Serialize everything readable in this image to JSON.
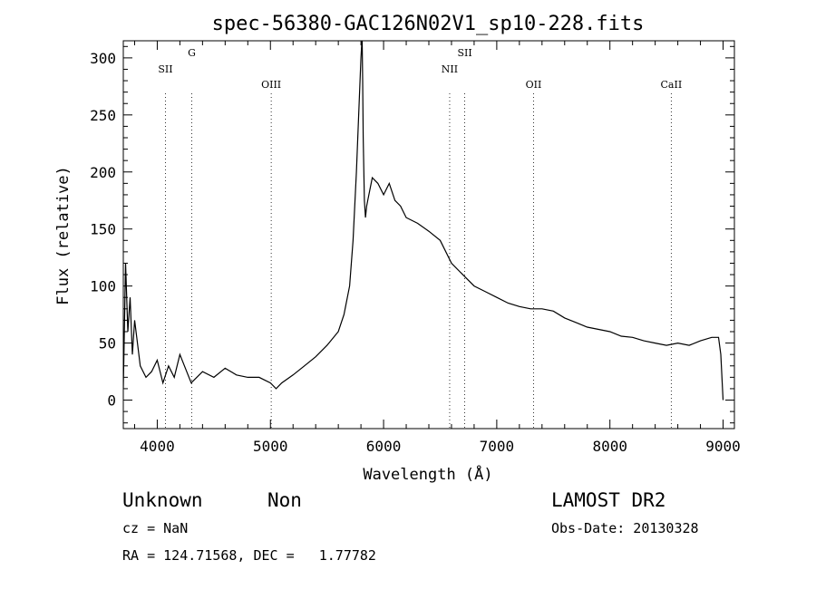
{
  "chart_data": {
    "type": "line",
    "title": "spec-56380-GAC126N02V1_sp10-228.fits",
    "xlabel": "Wavelength (Å)",
    "ylabel": "Flux (relative)",
    "xlim": [
      3700,
      9100
    ],
    "ylim": [
      -25,
      315
    ],
    "x_ticks": [
      4000,
      5000,
      6000,
      7000,
      8000,
      9000
    ],
    "y_ticks": [
      0,
      50,
      100,
      150,
      200,
      250,
      300
    ],
    "grid": false,
    "legend": "none",
    "line_color": "#000000",
    "series": [
      {
        "x": [
          3700,
          3720,
          3740,
          3760,
          3780,
          3800,
          3850,
          3900,
          3950,
          4000,
          4050,
          4100,
          4150,
          4200,
          4300,
          4400,
          4500,
          4600,
          4700,
          4800,
          4900,
          5000,
          5050,
          5100,
          5200,
          5300,
          5400,
          5500,
          5600,
          5650,
          5700,
          5730,
          5760,
          5780,
          5800,
          5810,
          5815,
          5820,
          5830,
          5840,
          5850,
          5860,
          5880,
          5900,
          5950,
          6000,
          6050,
          6100,
          6150,
          6200,
          6300,
          6400,
          6500,
          6600,
          6700,
          6800,
          6900,
          7000,
          7100,
          7200,
          7300,
          7400,
          7500,
          7600,
          7700,
          7800,
          7900,
          8000,
          8100,
          8200,
          8300,
          8400,
          8500,
          8600,
          8700,
          8800,
          8900,
          8960,
          8980,
          9000
        ],
        "y": [
          10,
          120,
          60,
          90,
          40,
          70,
          30,
          20,
          25,
          35,
          15,
          30,
          20,
          40,
          15,
          25,
          20,
          28,
          22,
          20,
          20,
          15,
          10,
          15,
          22,
          30,
          38,
          48,
          60,
          75,
          100,
          140,
          200,
          250,
          300,
          318,
          280,
          230,
          175,
          160,
          170,
          175,
          185,
          195,
          190,
          180,
          190,
          175,
          170,
          160,
          155,
          148,
          140,
          120,
          110,
          100,
          95,
          90,
          85,
          82,
          80,
          80,
          78,
          72,
          68,
          64,
          62,
          60,
          56,
          55,
          52,
          50,
          48,
          50,
          48,
          52,
          55,
          55,
          40,
          0
        ]
      }
    ],
    "line_markers": [
      {
        "label": "SII",
        "x": 4072,
        "label_row": "low"
      },
      {
        "label": "G",
        "x": 4305,
        "label_row": "high"
      },
      {
        "label": "OIII",
        "x": 5007,
        "label_row": "lower"
      },
      {
        "label": "NII",
        "x": 6584,
        "label_row": "low"
      },
      {
        "label": "SII",
        "x": 6717,
        "label_row": "high"
      },
      {
        "label": "OII",
        "x": 7325,
        "label_row": "lower"
      },
      {
        "label": "CaII",
        "x": 8542,
        "label_row": "lower"
      }
    ]
  },
  "footer": {
    "classification": "Unknown",
    "subclass": "Non",
    "survey": "LAMOST DR2",
    "cz": "cz = NaN",
    "obs_date": "Obs-Date: 20130328",
    "coords": "RA = 124.71568, DEC =   1.77782"
  }
}
